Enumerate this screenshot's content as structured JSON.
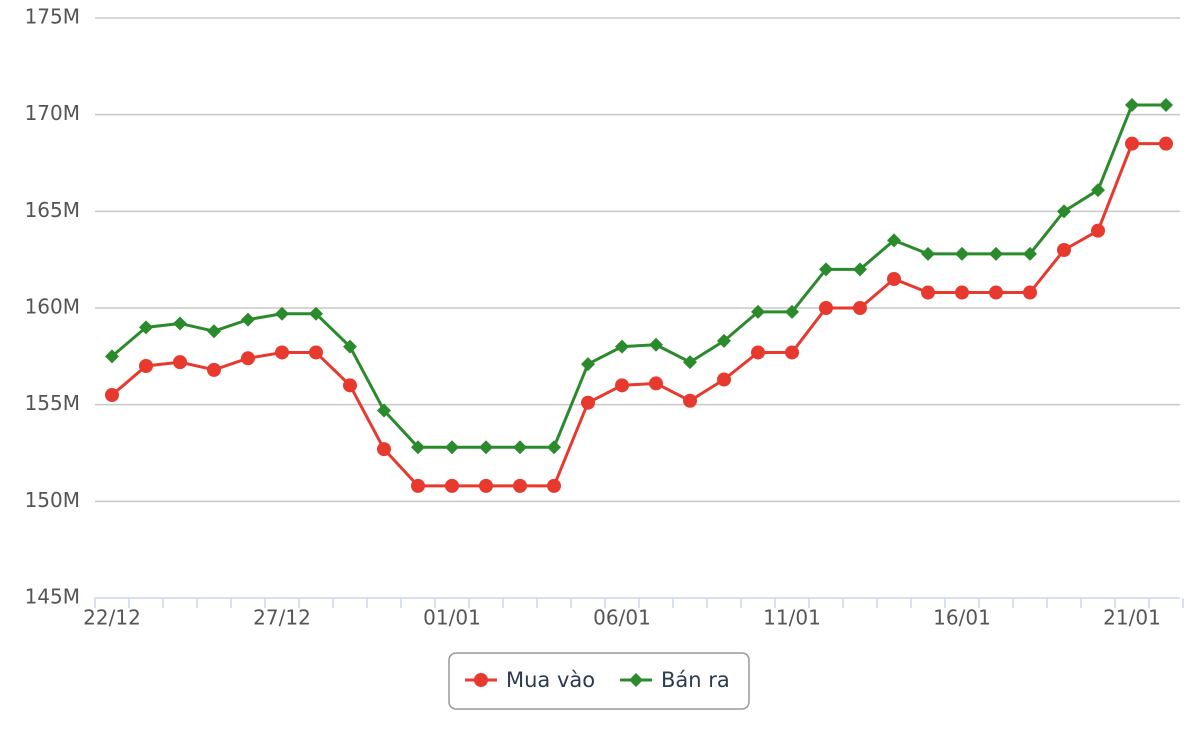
{
  "chart_data": {
    "type": "line",
    "categories": [
      "22/12",
      null,
      null,
      null,
      null,
      "27/12",
      null,
      null,
      null,
      null,
      "01/01",
      null,
      null,
      null,
      null,
      "06/01",
      null,
      null,
      null,
      null,
      "11/01",
      null,
      null,
      null,
      null,
      "16/01",
      null,
      null,
      null,
      null,
      "21/01",
      null
    ],
    "series": [
      {
        "name": "Mua vào",
        "color": "#e8392f",
        "marker": "circle",
        "values": [
          155500000,
          157000000,
          157200000,
          156800000,
          157400000,
          157700000,
          157700000,
          156000000,
          152700000,
          150800000,
          150800000,
          150800000,
          150800000,
          150800000,
          155100000,
          156000000,
          156100000,
          155200000,
          156300000,
          157700000,
          157700000,
          160000000,
          160000000,
          161500000,
          160800000,
          160800000,
          160800000,
          160800000,
          163000000,
          164000000,
          168500000,
          168500000
        ]
      },
      {
        "name": "Bán ra",
        "color": "#2b8a2b",
        "marker": "diamond",
        "values": [
          157500000,
          159000000,
          159200000,
          158800000,
          159400000,
          159700000,
          159700000,
          158000000,
          154700000,
          152800000,
          152800000,
          152800000,
          152800000,
          152800000,
          157100000,
          158000000,
          158100000,
          157200000,
          158300000,
          159800000,
          159800000,
          162000000,
          162000000,
          163500000,
          162800000,
          162800000,
          162800000,
          162800000,
          165000000,
          166100000,
          170500000,
          170500000
        ]
      }
    ],
    "ylim": [
      145000000,
      175000000
    ],
    "yticks": [
      {
        "value": 145000000,
        "label": "145M"
      },
      {
        "value": 150000000,
        "label": "150M"
      },
      {
        "value": 155000000,
        "label": "155M"
      },
      {
        "value": 160000000,
        "label": "160M"
      },
      {
        "value": 165000000,
        "label": "165M"
      },
      {
        "value": 170000000,
        "label": "170M"
      },
      {
        "value": 175000000,
        "label": "175M"
      }
    ],
    "grid": true,
    "legend": "bottom"
  }
}
